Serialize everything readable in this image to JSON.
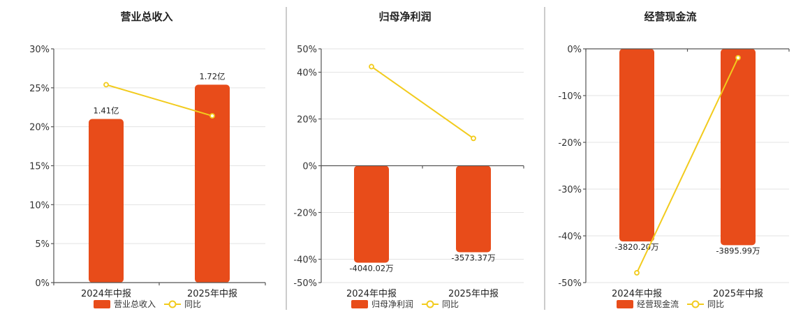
{
  "colors": {
    "bar": "#E84C1A",
    "line": "#F2CB1D",
    "point_fill": "#ffffff"
  },
  "chart_data": [
    {
      "type": "bar",
      "title": "营业总收入",
      "categories": [
        "2024年中报",
        "2025年中报"
      ],
      "ylim": [
        0,
        30
      ],
      "yticks": [
        "0%",
        "5%",
        "10%",
        "15%",
        "20%",
        "25%",
        "30%"
      ],
      "series": [
        {
          "name": "营业总收入",
          "type": "bar",
          "values": [
            21,
            25.4
          ],
          "labels": [
            "1.41亿",
            "1.72亿"
          ]
        },
        {
          "name": "同比",
          "type": "line",
          "values": [
            25.4,
            21.4
          ]
        }
      ],
      "legend": "bottom-center",
      "grid": true
    },
    {
      "type": "bar",
      "title": "归母净利润",
      "categories": [
        "2024年中报",
        "2025年中报"
      ],
      "ylim": [
        -50,
        50
      ],
      "yticks": [
        "-50%",
        "-40%",
        "-20%",
        "0%",
        "20%",
        "40%",
        "50%"
      ],
      "series": [
        {
          "name": "归母净利润",
          "type": "bar",
          "values": [
            -41.5,
            -37
          ],
          "labels": [
            "-4040.02万",
            "-3573.37万"
          ]
        },
        {
          "name": "同比",
          "type": "line",
          "values": [
            42.4,
            11.7
          ]
        }
      ],
      "legend": "bottom-center",
      "grid": true
    },
    {
      "type": "bar",
      "title": "经营现金流",
      "categories": [
        "2024年中报",
        "2025年中报"
      ],
      "ylim": [
        -50,
        0
      ],
      "yticks": [
        "-50%",
        "-40%",
        "-30%",
        "-20%",
        "-10%",
        "0%"
      ],
      "series": [
        {
          "name": "经营现金流",
          "type": "bar",
          "values": [
            -41.2,
            -42
          ],
          "labels": [
            "-3820.20万",
            "-3895.99万"
          ]
        },
        {
          "name": "同比",
          "type": "line",
          "values": [
            -47.9,
            -1.9
          ]
        }
      ],
      "legend": "bottom-center",
      "grid": true
    }
  ]
}
